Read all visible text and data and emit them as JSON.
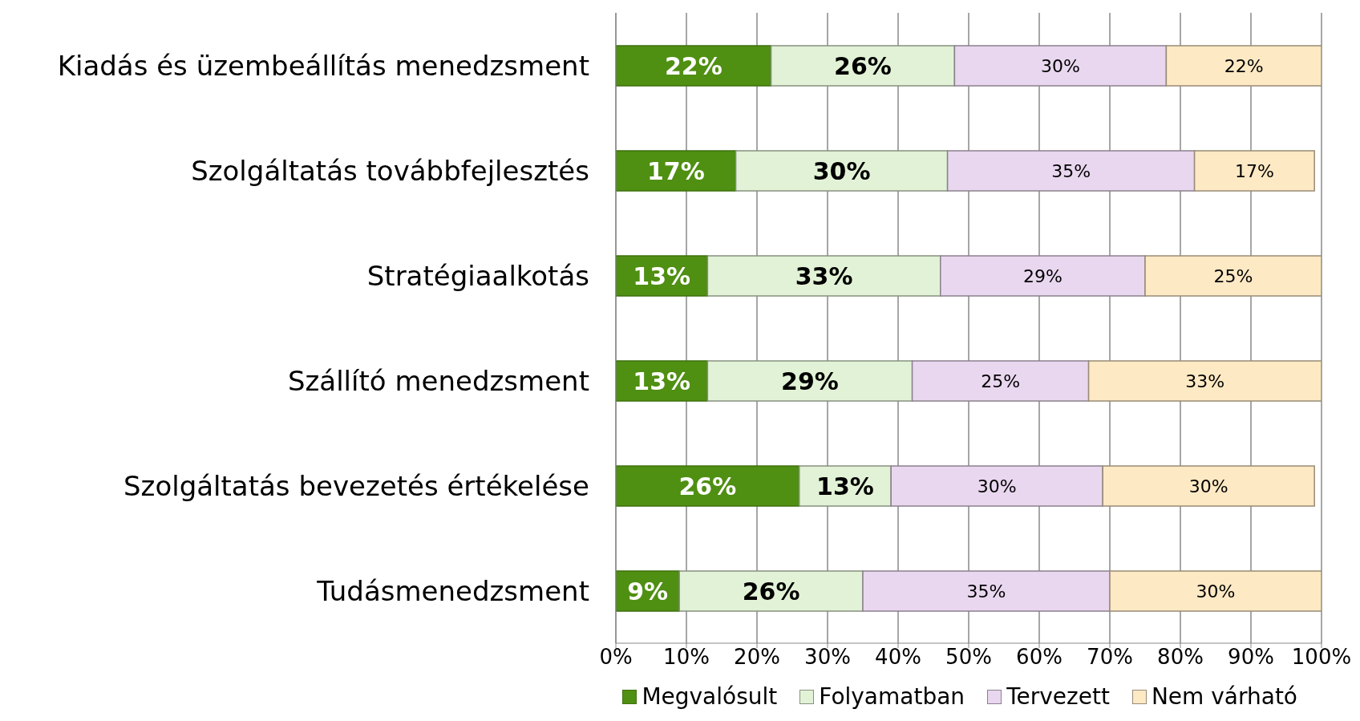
{
  "chart_data": {
    "type": "bar",
    "orientation": "horizontal",
    "stacked": true,
    "grid": "x",
    "legend": "bottom",
    "categories": [
      "Kiadás és üzembeállítás menedzsment",
      "Szolgáltatás továbbfejlesztés",
      "Stratégiaalkotás",
      "Szállító menedzsment",
      "Szolgáltatás bevezetés értékelése",
      "Tudásmenedzsment"
    ],
    "series": [
      {
        "name": "Megvalósult",
        "color": "#4f8f12",
        "values": [
          22,
          17,
          13,
          13,
          26,
          9
        ],
        "value_labels": [
          "22%",
          "17%",
          "13%",
          "13%",
          "26%",
          "9%"
        ]
      },
      {
        "name": "Folyamatban",
        "color": "#e2f2d6",
        "values": [
          26,
          30,
          33,
          29,
          13,
          26
        ],
        "value_labels": [
          "26%",
          "30%",
          "33%",
          "29%",
          "13%",
          "26%"
        ]
      },
      {
        "name": "Tervezett",
        "color": "#e9d7ef",
        "values": [
          30,
          35,
          29,
          25,
          30,
          35
        ],
        "value_labels": [
          "30%",
          "35%",
          "29%",
          "25%",
          "30%",
          "35%"
        ]
      },
      {
        "name": "Nem várható",
        "color": "#fde9c4",
        "values": [
          22,
          17,
          25,
          33,
          30,
          30
        ],
        "value_labels": [
          "22%",
          "17%",
          "25%",
          "33%",
          "30%",
          "30%"
        ]
      }
    ],
    "xlim": [
      0,
      100
    ],
    "xticks": [
      {
        "value": 0,
        "label": "0%"
      },
      {
        "value": 10,
        "label": "10%"
      },
      {
        "value": 20,
        "label": "20%"
      },
      {
        "value": 30,
        "label": "30%"
      },
      {
        "value": 40,
        "label": "40%"
      },
      {
        "value": 50,
        "label": "50%"
      },
      {
        "value": 60,
        "label": "60%"
      },
      {
        "value": 70,
        "label": "70%"
      },
      {
        "value": 80,
        "label": "80%"
      },
      {
        "value": 90,
        "label": "90%"
      },
      {
        "value": 100,
        "label": "100%"
      }
    ]
  }
}
